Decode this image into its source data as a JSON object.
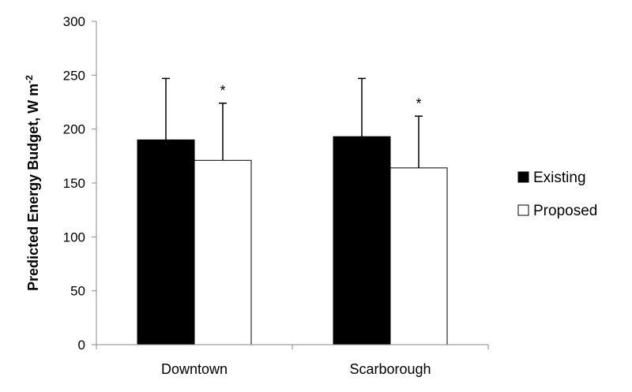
{
  "chart_data": {
    "type": "bar",
    "title": "",
    "xlabel": "",
    "ylabel": "Predicted Energy Budget, W m",
    "ylabel_superscript": "-2",
    "ylim": [
      0,
      300
    ],
    "yticks": [
      0,
      50,
      100,
      150,
      200,
      250,
      300
    ],
    "grid": false,
    "legend_position": "right",
    "categories": [
      "Downtown",
      "Scarborough"
    ],
    "series": [
      {
        "name": "Existing",
        "values": [
          190,
          193
        ],
        "errors": [
          57,
          54
        ],
        "color": "#000000"
      },
      {
        "name": "Proposed",
        "values": [
          171,
          164
        ],
        "errors": [
          53,
          48
        ],
        "color": "#ffffff"
      }
    ],
    "annotations": [
      {
        "series": "Proposed",
        "category": "Downtown",
        "text": "*"
      },
      {
        "series": "Proposed",
        "category": "Scarborough",
        "text": "*"
      }
    ]
  }
}
